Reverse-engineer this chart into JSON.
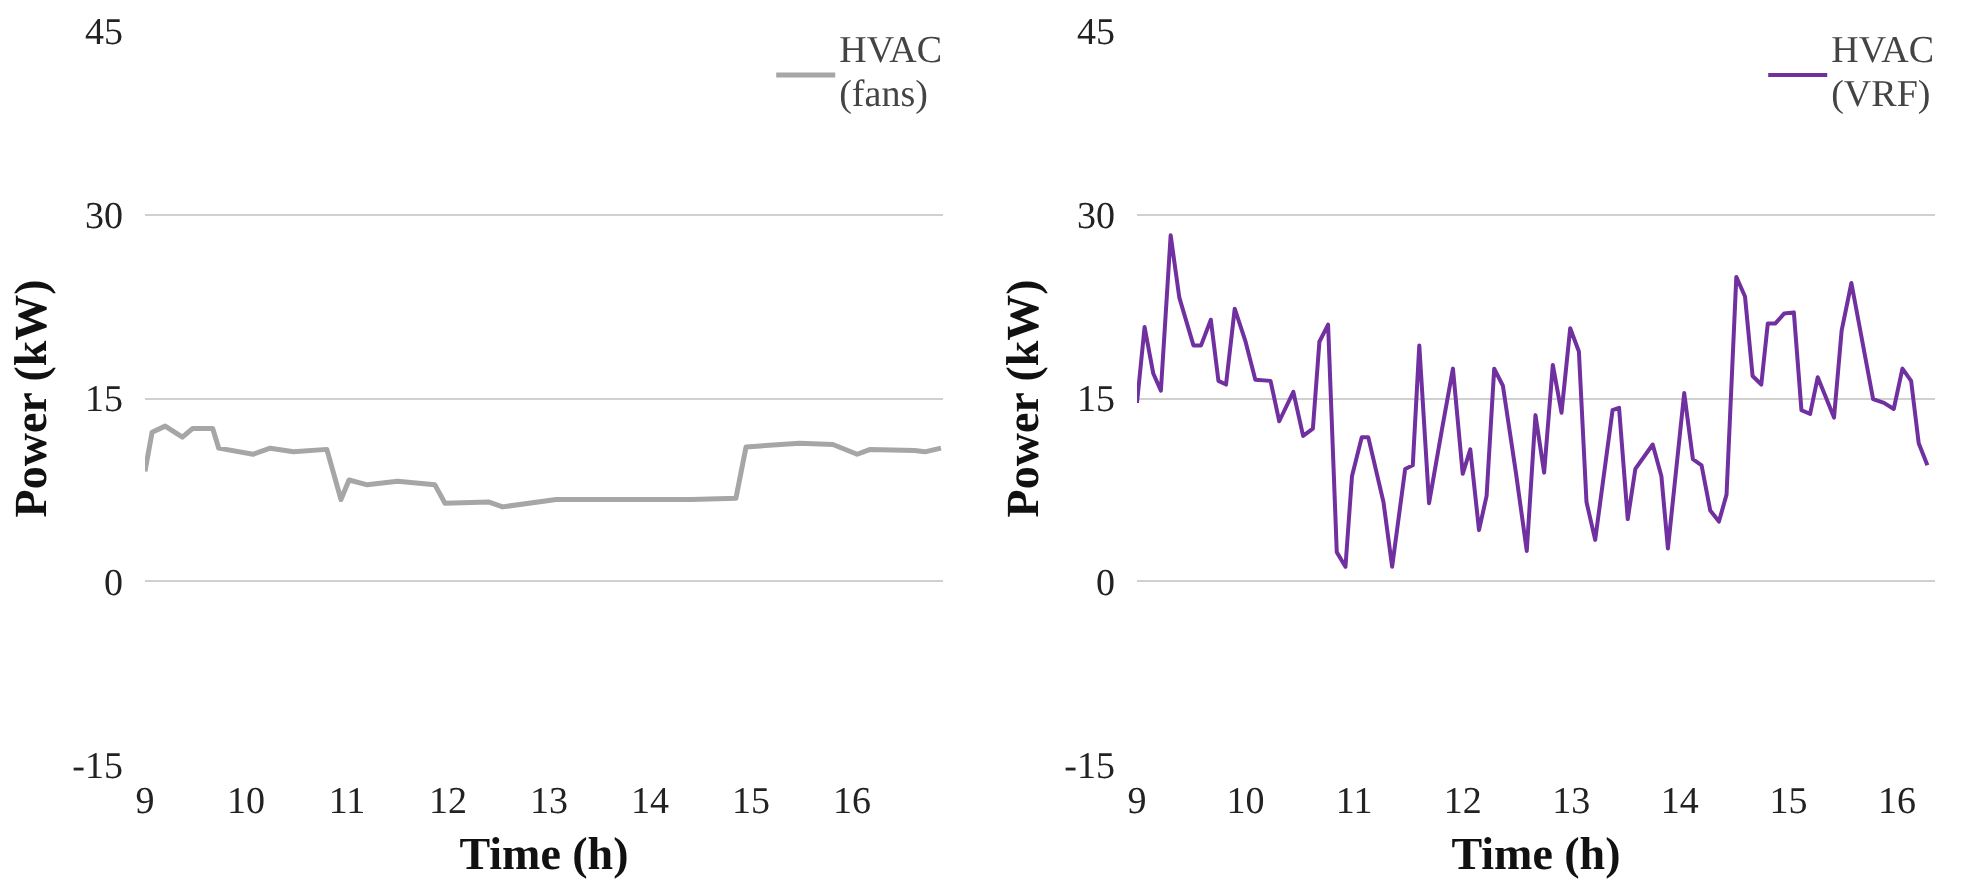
{
  "chart_data": [
    {
      "type": "line",
      "xlabel": "Time (h)",
      "ylabel": "Power (kW)",
      "xlim": [
        9,
        16.9
      ],
      "ylim": [
        -15,
        45
      ],
      "xticks": [
        9,
        10,
        11,
        12,
        13,
        14,
        15,
        16
      ],
      "yticks": [
        -15,
        0,
        15,
        30,
        45
      ],
      "grid": "y",
      "legend": "top right",
      "line_style": "solid",
      "series": [
        {
          "name": "HVAC (fans)",
          "color": "#a6a6a6",
          "x": [
            9.0,
            9.07,
            9.2,
            9.37,
            9.47,
            9.67,
            9.73,
            10.07,
            10.24,
            10.47,
            10.8,
            10.94,
            11.02,
            11.2,
            11.5,
            11.87,
            11.97,
            12.4,
            12.54,
            13.07,
            13.74,
            14.41,
            14.85,
            14.95,
            15.48,
            15.81,
            16.05,
            16.18,
            16.62,
            16.72,
            16.88
          ],
          "values": [
            9.0,
            12.2,
            12.7,
            11.8,
            12.5,
            12.5,
            10.9,
            10.4,
            10.9,
            10.6,
            10.8,
            6.7,
            8.3,
            7.9,
            8.2,
            7.9,
            6.4,
            6.5,
            6.1,
            6.7,
            6.7,
            6.7,
            6.8,
            11.0,
            11.3,
            11.2,
            10.4,
            10.8,
            10.7,
            10.6,
            10.9
          ]
        }
      ]
    },
    {
      "type": "line",
      "xlabel": "Time (h)",
      "ylabel": "Power (kW)",
      "xlim": [
        9,
        16.35
      ],
      "ylim": [
        -15,
        45
      ],
      "xticks": [
        9,
        10,
        11,
        12,
        13,
        14,
        15,
        16
      ],
      "yticks": [
        -15,
        0,
        15,
        30,
        45
      ],
      "grid": "y",
      "legend": "top right",
      "line_style": "solid",
      "series": [
        {
          "name": "HVAC (VRF)",
          "color": "#7030a0",
          "x": [
            9.0,
            9.07,
            9.15,
            9.22,
            9.31,
            9.39,
            9.52,
            9.59,
            9.68,
            9.75,
            9.82,
            9.9,
            10.0,
            10.09,
            10.23,
            10.31,
            10.44,
            10.53,
            10.62,
            10.68,
            10.76,
            10.84,
            10.92,
            10.98,
            11.07,
            11.13,
            11.27,
            11.35,
            11.47,
            11.54,
            11.6,
            11.69,
            11.81,
            11.91,
            12.0,
            12.07,
            12.15,
            12.22,
            12.29,
            12.37,
            12.49,
            12.59,
            12.67,
            12.75,
            12.83,
            12.91,
            12.99,
            13.07,
            13.14,
            13.22,
            13.38,
            13.44,
            13.52,
            13.59,
            13.75,
            13.83,
            13.89,
            14.04,
            14.12,
            14.2,
            14.28,
            14.36,
            14.43,
            14.52,
            14.6,
            14.67,
            14.75,
            14.81,
            14.88,
            14.96,
            15.05,
            15.12,
            15.2,
            15.27,
            15.42,
            15.49,
            15.58,
            15.78,
            15.88,
            15.97,
            16.05,
            16.13,
            16.2,
            16.28
          ],
          "values": [
            14.6,
            20.8,
            17.0,
            15.6,
            28.3,
            23.2,
            19.3,
            19.3,
            21.4,
            16.4,
            16.1,
            22.3,
            19.6,
            16.5,
            16.4,
            13.1,
            15.5,
            11.9,
            12.5,
            19.6,
            21.0,
            2.4,
            1.2,
            8.6,
            11.8,
            11.8,
            6.5,
            1.2,
            9.2,
            9.5,
            19.3,
            6.4,
            12.5,
            17.4,
            8.8,
            10.8,
            4.2,
            7.0,
            17.4,
            16.0,
            8.9,
            2.5,
            13.6,
            8.9,
            17.7,
            13.8,
            20.7,
            18.8,
            6.5,
            3.4,
            14.0,
            14.2,
            5.1,
            9.2,
            11.2,
            8.6,
            2.7,
            15.4,
            10.0,
            9.5,
            5.8,
            4.9,
            7.1,
            24.9,
            23.3,
            16.8,
            16.1,
            21.1,
            21.1,
            21.9,
            22.0,
            14.0,
            13.7,
            16.7,
            13.4,
            20.5,
            24.4,
            14.9,
            14.6,
            14.1,
            17.4,
            16.4,
            11.3,
            9.5
          ]
        }
      ]
    }
  ]
}
